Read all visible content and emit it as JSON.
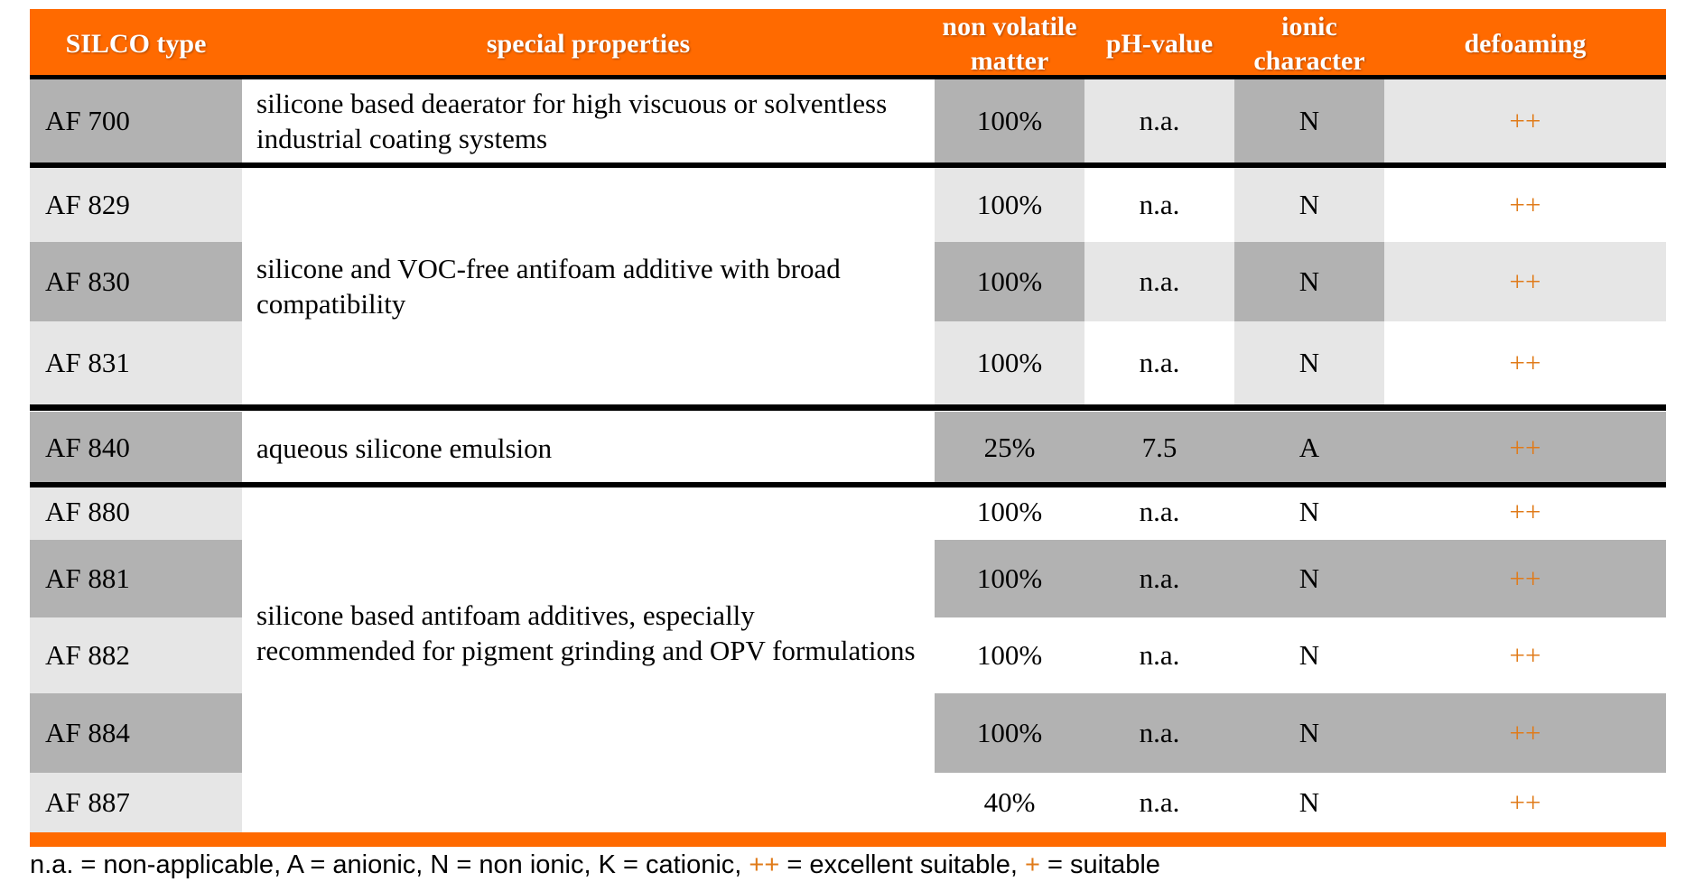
{
  "headers": {
    "type": "SILCO type",
    "special": "special properties",
    "nvm": "non volatile matter",
    "ph": "pH-value",
    "ionic": "ionic character",
    "defoaming": "defoaming"
  },
  "rows": [
    {
      "type": "AF 700",
      "nvm": "100%",
      "ph": "n.a.",
      "ionic": "N",
      "defoaming": "++"
    },
    {
      "type": "AF 829",
      "nvm": "100%",
      "ph": "n.a.",
      "ionic": "N",
      "defoaming": "++"
    },
    {
      "type": "AF 830",
      "nvm": "100%",
      "ph": "n.a.",
      "ionic": "N",
      "defoaming": "++"
    },
    {
      "type": "AF 831",
      "nvm": "100%",
      "ph": "n.a.",
      "ionic": "N",
      "defoaming": "++"
    },
    {
      "type": "AF 840",
      "nvm": "25%",
      "ph": "7.5",
      "ionic": "A",
      "defoaming": "++"
    },
    {
      "type": "AF 880",
      "nvm": "100%",
      "ph": "n.a.",
      "ionic": "N",
      "defoaming": "++"
    },
    {
      "type": "AF 881",
      "nvm": "100%",
      "ph": "n.a.",
      "ionic": "N",
      "defoaming": "++"
    },
    {
      "type": "AF 882",
      "nvm": "100%",
      "ph": "n.a.",
      "ionic": "N",
      "defoaming": "++"
    },
    {
      "type": "AF 884",
      "nvm": "100%",
      "ph": "n.a.",
      "ionic": "N",
      "defoaming": "++"
    },
    {
      "type": "AF 887",
      "nvm": "40%",
      "ph": "n.a.",
      "ionic": "N",
      "defoaming": "++"
    }
  ],
  "properties": [
    "silicone based deaerator for high viscuous or solventless industrial coating systems",
    "silicone and VOC-free antifoam additive with broad compatibility",
    "aqueous silicone emulsion",
    "silicone based antifoam additives, especially recommended for pigment grinding and OPV formulations"
  ],
  "legend": {
    "part1": "n.a. = non-applicable, A = anionic, N = non ionic, K = cationic,",
    "excellent_symbol": "++",
    "part2": "= excellent suitable,",
    "suitable_symbol": "+",
    "part3": "= suitable"
  },
  "colors": {
    "header_orange": "#ff6a00",
    "symbol_orange": "#e07b1a",
    "dark_gray": "#b2b2b2",
    "light_gray": "#e6e6e6",
    "white": "#ffffff"
  }
}
